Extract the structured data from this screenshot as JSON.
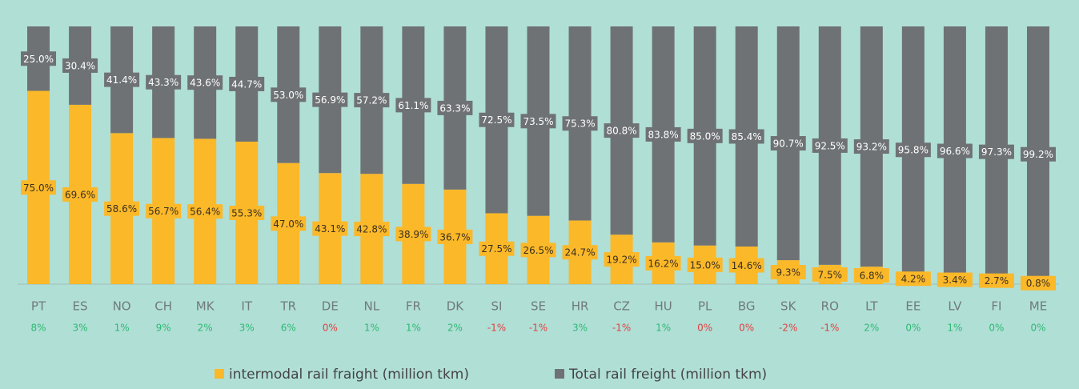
{
  "chart_data": {
    "type": "stacked_bar",
    "categories": [
      "PT",
      "ES",
      "NO",
      "CH",
      "MK",
      "IT",
      "TR",
      "DE",
      "NL",
      "FR",
      "DK",
      "SI",
      "SE",
      "HR",
      "CZ",
      "HU",
      "PL",
      "BG",
      "SK",
      "RO",
      "LT",
      "EE",
      "LV",
      "FI",
      "ME"
    ],
    "series": [
      {
        "name": "intermodal rail fraight (million tkm)",
        "color": "#fbb829",
        "values": [
          75.0,
          69.6,
          58.6,
          56.7,
          56.4,
          55.3,
          47.0,
          43.1,
          42.8,
          38.9,
          36.7,
          27.5,
          26.5,
          24.7,
          19.2,
          16.2,
          15.0,
          14.6,
          9.3,
          7.5,
          6.8,
          4.2,
          3.4,
          2.7,
          0.8
        ],
        "value_labels": [
          "75.0%",
          "69.6%",
          "58.6%",
          "56.7%",
          "56.4%",
          "55.3%",
          "47.0%",
          "43.1%",
          "42.8%",
          "38.9%",
          "36.7%",
          "27.5%",
          "26.5%",
          "24.7%",
          "19.2%",
          "16.2%",
          "15.0%",
          "14.6%",
          "9.3%",
          "7.5%",
          "6.8%",
          "4.2%",
          "3.4%",
          "2.7%",
          "0.8%"
        ]
      },
      {
        "name": "Total rail freight (million tkm)",
        "color": "#6f7275",
        "values": [
          25.0,
          30.4,
          41.4,
          43.3,
          43.6,
          44.7,
          53.0,
          56.9,
          57.2,
          61.1,
          63.3,
          72.5,
          73.5,
          75.3,
          80.8,
          83.8,
          85.0,
          85.4,
          90.7,
          92.5,
          93.2,
          95.8,
          96.6,
          97.3,
          99.2
        ],
        "value_labels": [
          "25.0%",
          "30.4%",
          "41.4%",
          "43.3%",
          "43.6%",
          "44.7%",
          "53.0%",
          "56.9%",
          "57.2%",
          "61.1%",
          "63.3%",
          "72.5%",
          "73.5%",
          "75.3%",
          "80.8%",
          "83.8%",
          "85.0%",
          "85.4%",
          "90.7%",
          "92.5%",
          "93.2%",
          "95.8%",
          "96.6%",
          "97.3%",
          "99.2%"
        ]
      }
    ],
    "change_labels": [
      "8%",
      "3%",
      "1%",
      "9%",
      "2%",
      "3%",
      "6%",
      "0%",
      "1%",
      "1%",
      "2%",
      "-1%",
      "-1%",
      "3%",
      "-1%",
      "1%",
      "0%",
      "0%",
      "-2%",
      "-1%",
      "2%",
      "0%",
      "1%",
      "0%",
      "0%"
    ],
    "change_colors": [
      "#2eb872",
      "#2eb872",
      "#2eb872",
      "#2eb872",
      "#2eb872",
      "#2eb872",
      "#2eb872",
      "#e0413f",
      "#2eb872",
      "#2eb872",
      "#2eb872",
      "#e0413f",
      "#e0413f",
      "#2eb872",
      "#e0413f",
      "#2eb872",
      "#e0413f",
      "#e0413f",
      "#e0413f",
      "#e0413f",
      "#2eb872",
      "#2eb872",
      "#2eb872",
      "#2eb872",
      "#2eb872"
    ],
    "ylim": [
      0,
      100
    ],
    "legend": "bottom"
  }
}
